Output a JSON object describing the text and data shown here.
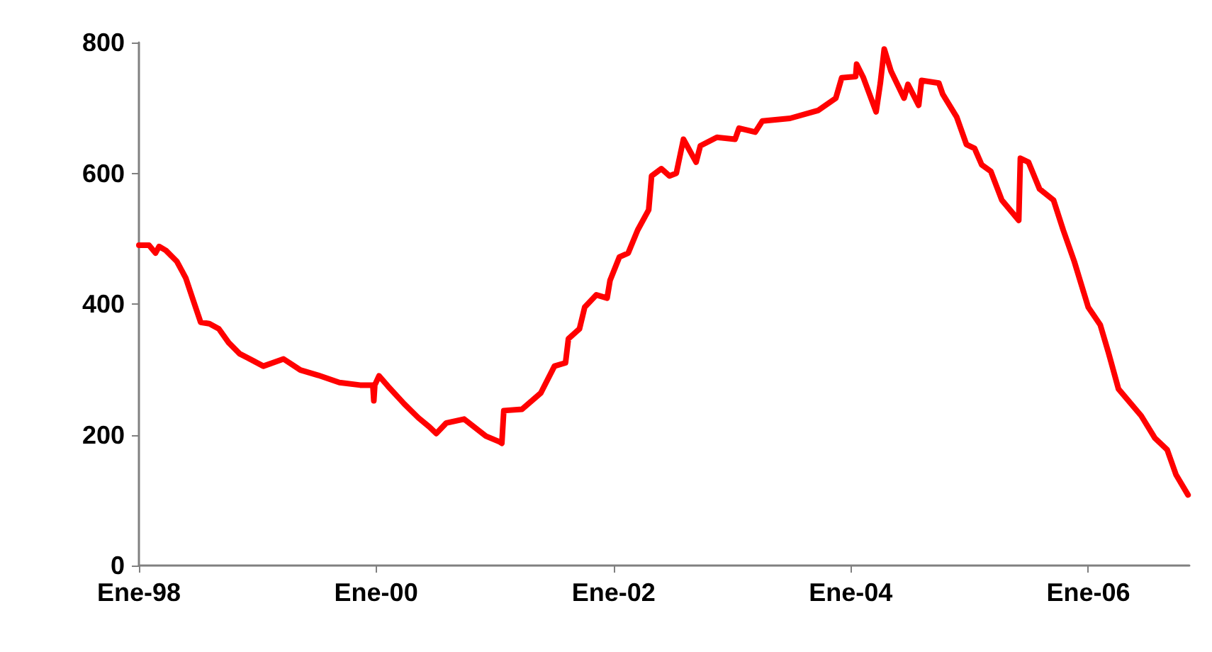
{
  "chart_data": {
    "type": "line",
    "color": "#ff0000",
    "grid": false,
    "marker": "none",
    "line_style": "solid",
    "xlim": [
      "1998-01-01",
      "2006-11-08"
    ],
    "xticks": [
      {
        "value": "1998-01-01",
        "label": "Ene-98"
      },
      {
        "value": "2000-01-01",
        "label": "Ene-00"
      },
      {
        "value": "2002-01-01",
        "label": "Ene-02"
      },
      {
        "value": "2004-01-01",
        "label": "Ene-04"
      },
      {
        "value": "2006-01-01",
        "label": "Ene-06"
      }
    ],
    "ylim": [
      0,
      800
    ],
    "yticks": [
      0,
      200,
      400,
      600,
      800
    ],
    "x": [
      "1998-01-01",
      "1998-02-01",
      "1998-02-21",
      "1998-03-04",
      "1998-03-25",
      "1998-04-28",
      "1998-05-25",
      "1998-06-19",
      "1998-07-10",
      "1998-08-06",
      "1998-09-04",
      "1998-10-04",
      "1998-11-07",
      "1998-12-16",
      "1999-01-19",
      "1999-03-22",
      "1999-05-13",
      "1999-07-07",
      "1999-09-10",
      "1999-11-13",
      "1999-12-22",
      "1999-12-25",
      "1999-12-28",
      "2000-01-10",
      "2000-02-07",
      "2000-03-28",
      "2000-05-10",
      "2000-06-13",
      "2000-07-04",
      "2000-08-04",
      "2000-09-28",
      "2000-12-04",
      "2001-01-16",
      "2001-01-22",
      "2001-01-28",
      "2001-03-25",
      "2001-05-22",
      "2001-07-03",
      "2001-08-06",
      "2001-08-15",
      "2001-09-18",
      "2001-10-04",
      "2001-11-09",
      "2001-12-12",
      "2001-12-21",
      "2002-01-19",
      "2002-02-15",
      "2002-03-16",
      "2002-04-19",
      "2002-04-28",
      "2002-05-28",
      "2002-06-22",
      "2002-07-13",
      "2002-08-04",
      "2002-09-12",
      "2002-09-25",
      "2002-11-15",
      "2003-01-10",
      "2003-01-22",
      "2003-03-13",
      "2003-04-04",
      "2003-06-28",
      "2003-09-22",
      "2003-11-16",
      "2003-12-04",
      "2004-01-16",
      "2004-01-19",
      "2004-02-09",
      "2004-03-19",
      "2004-04-01",
      "2004-04-13",
      "2004-05-04",
      "2004-06-13",
      "2004-06-25",
      "2004-07-28",
      "2004-08-06",
      "2004-09-28",
      "2004-10-10",
      "2004-11-22",
      "2004-12-22",
      "2005-01-16",
      "2005-02-07",
      "2005-03-07",
      "2005-04-10",
      "2005-06-01",
      "2005-06-06",
      "2005-07-01",
      "2005-08-04",
      "2005-09-16",
      "2005-10-16",
      "2005-11-19",
      "2006-01-01",
      "2006-02-07",
      "2006-03-04",
      "2006-04-04",
      "2006-06-13",
      "2006-07-25",
      "2006-09-01",
      "2006-09-28",
      "2006-11-04"
    ],
    "values": [
      490,
      490,
      478,
      488,
      482,
      465,
      440,
      403,
      372,
      370,
      362,
      341,
      324,
      314,
      305,
      316,
      299,
      291,
      280,
      276,
      276,
      252,
      276,
      290,
      274,
      247,
      226,
      212,
      202,
      218,
      224,
      198,
      189,
      187,
      237,
      239,
      264,
      305,
      310,
      347,
      362,
      395,
      414,
      409,
      436,
      472,
      478,
      513,
      544,
      596,
      607,
      596,
      600,
      652,
      617,
      642,
      655,
      652,
      669,
      663,
      680,
      684,
      696,
      715,
      746,
      748,
      767,
      746,
      694,
      738,
      790,
      756,
      715,
      736,
      704,
      742,
      738,
      721,
      686,
      644,
      638,
      613,
      603,
      559,
      528,
      623,
      617,
      576,
      559,
      513,
      465,
      395,
      368,
      326,
      270,
      229,
      195,
      177,
      139,
      108
    ]
  }
}
